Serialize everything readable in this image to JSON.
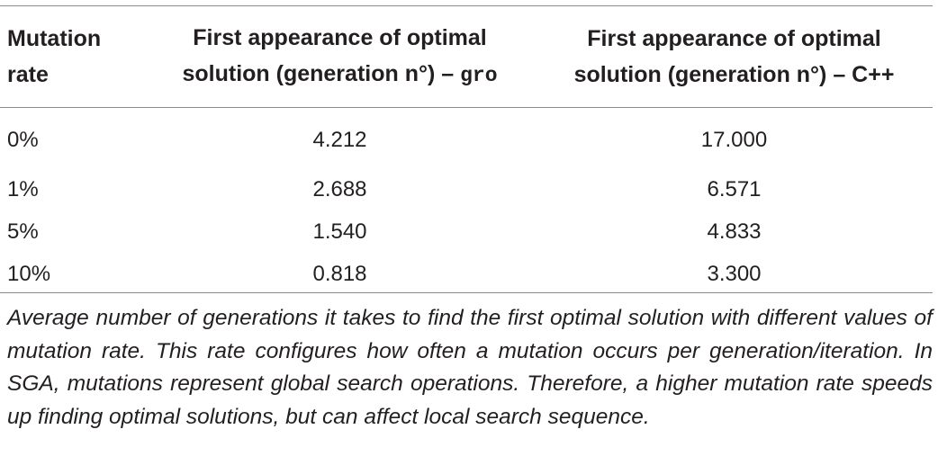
{
  "table": {
    "headers": {
      "col1_line1": "Mutation",
      "col1_line2": "rate",
      "col2_line1": "First appearance of optimal",
      "col2_line2": "solution (generation n°) – ",
      "col2_code": "gro",
      "col3_line1": "First appearance of optimal",
      "col3_line2": "solution (generation n°) – C++"
    },
    "rows": [
      {
        "rate": "0%",
        "gro": "4.212",
        "cpp": "17.000"
      },
      {
        "rate": "1%",
        "gro": "2.688",
        "cpp": "6.571"
      },
      {
        "rate": "5%",
        "gro": "1.540",
        "cpp": "4.833"
      },
      {
        "rate": "10%",
        "gro": "0.818",
        "cpp": "3.300"
      }
    ]
  },
  "caption": "Average number of generations it takes to find the first optimal solution with different values of mutation rate. This rate configures how often a mutation occurs per generation/iteration. In SGA, mutations represent global search operations. Therefore, a higher mutation rate speeds up finding optimal solutions, but can affect local search sequence."
}
